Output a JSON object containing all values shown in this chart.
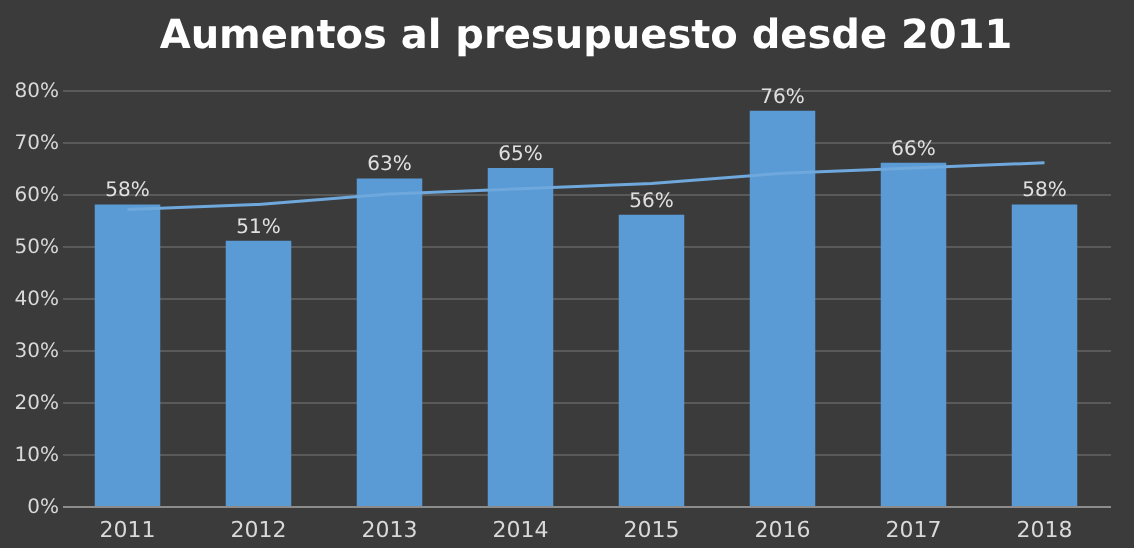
{
  "chart_data": {
    "type": "bar",
    "title": "Aumentos al presupuesto desde 2011",
    "categories": [
      "2011",
      "2012",
      "2013",
      "2014",
      "2015",
      "2016",
      "2017",
      "2018"
    ],
    "series": [
      {
        "color": "#5b9bd5",
        "values": [
          58,
          51,
          63,
          65,
          56,
          76,
          66,
          58
        ],
        "value_labels": [
          "58%",
          "51%",
          "63%",
          "65%",
          "56%",
          "76%",
          "66%",
          "58%"
        ]
      },
      {
        "type": "line",
        "color": "#6fa8dc",
        "values": [
          57,
          58,
          60,
          61,
          62,
          64,
          65,
          66
        ]
      }
    ],
    "ylim": [
      0,
      80
    ],
    "yticks": [
      {
        "value": 0,
        "label": "0%"
      },
      {
        "value": 10,
        "label": "10%"
      },
      {
        "value": 20,
        "label": "20%"
      },
      {
        "value": 30,
        "label": "30%"
      },
      {
        "value": 40,
        "label": "40%"
      },
      {
        "value": 50,
        "label": "50%"
      },
      {
        "value": 60,
        "label": "60%"
      },
      {
        "value": 70,
        "label": "70%"
      },
      {
        "value": 80,
        "label": "80%"
      }
    ],
    "grid": "y",
    "marker": "none",
    "line_style": "solid"
  }
}
